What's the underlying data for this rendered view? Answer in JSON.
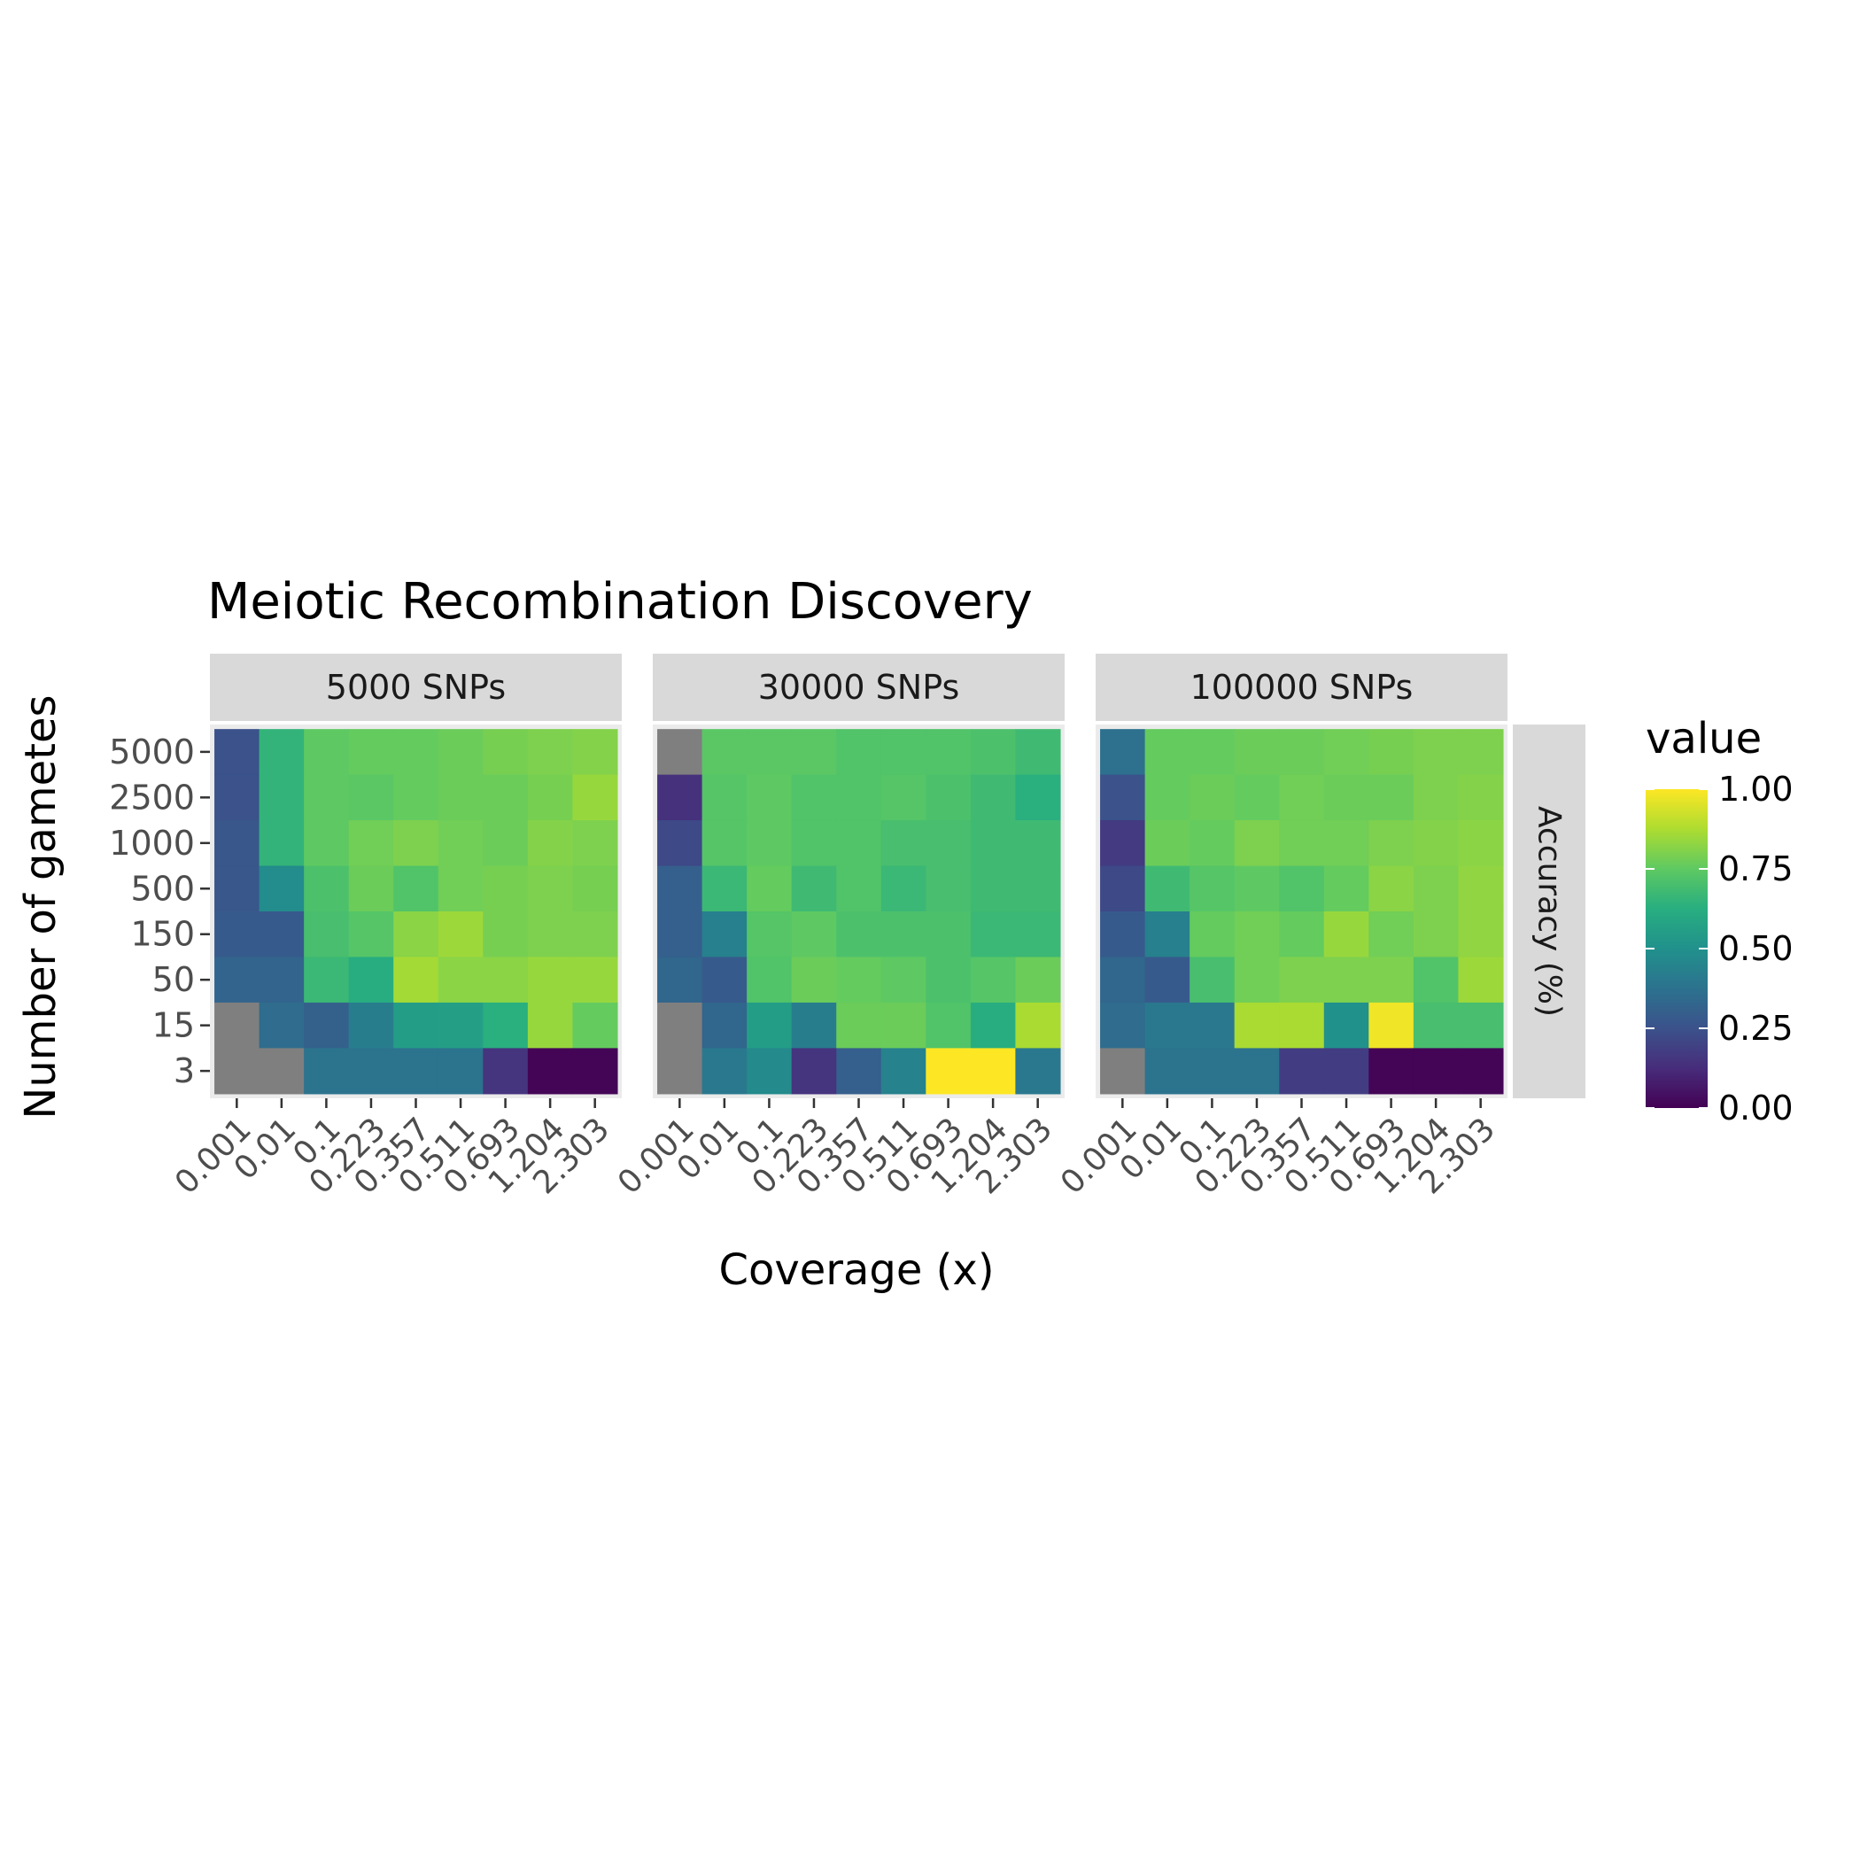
{
  "chart_data": {
    "type": "heatmap",
    "title": "Meiotic Recombination Discovery",
    "xlabel": "Coverage (x)",
    "ylabel": "Number of gametes",
    "strip_right": "Accuracy (%)",
    "x_categories": [
      "0.001",
      "0.01",
      "0.1",
      "0.223",
      "0.357",
      "0.511",
      "0.693",
      "1.204",
      "2.303"
    ],
    "y_categories": [
      "5000",
      "2500",
      "1000",
      "500",
      "150",
      "50",
      "15",
      "3"
    ],
    "legend": {
      "title": "value",
      "ticks": [
        "0.00",
        "0.25",
        "0.50",
        "0.75",
        "1.00"
      ],
      "limits": [
        0,
        1
      ],
      "palette": "viridis"
    },
    "na_color": "#7f7f7f",
    "panels": [
      {
        "label": "5000 SNPs",
        "values": [
          [
            0.25,
            0.65,
            0.75,
            0.76,
            0.76,
            0.77,
            0.79,
            0.8,
            0.81
          ],
          [
            0.25,
            0.65,
            0.75,
            0.74,
            0.76,
            0.77,
            0.77,
            0.79,
            0.84
          ],
          [
            0.27,
            0.65,
            0.75,
            0.78,
            0.8,
            0.78,
            0.77,
            0.81,
            0.8
          ],
          [
            0.27,
            0.48,
            0.71,
            0.77,
            0.72,
            0.78,
            0.79,
            0.8,
            0.79
          ],
          [
            0.28,
            0.28,
            0.7,
            0.73,
            0.82,
            0.85,
            0.79,
            0.8,
            0.8
          ],
          [
            0.32,
            0.32,
            0.67,
            0.62,
            0.86,
            0.82,
            0.82,
            0.84,
            0.84
          ],
          [
            null,
            0.35,
            0.31,
            0.42,
            0.55,
            0.56,
            0.63,
            0.84,
            0.76
          ],
          [
            null,
            null,
            0.38,
            0.38,
            0.38,
            0.38,
            0.15,
            0.01,
            0.01
          ]
        ]
      },
      {
        "label": "30000 SNPs",
        "values": [
          [
            null,
            0.74,
            0.74,
            0.74,
            0.72,
            0.72,
            0.72,
            0.71,
            0.68
          ],
          [
            0.14,
            0.73,
            0.75,
            0.72,
            0.72,
            0.73,
            0.71,
            0.68,
            0.63
          ],
          [
            0.22,
            0.73,
            0.75,
            0.72,
            0.72,
            0.7,
            0.7,
            0.68,
            0.68
          ],
          [
            0.3,
            0.67,
            0.76,
            0.68,
            0.72,
            0.67,
            0.7,
            0.68,
            0.68
          ],
          [
            0.3,
            0.43,
            0.73,
            0.75,
            0.71,
            0.71,
            0.71,
            0.67,
            0.67
          ],
          [
            0.33,
            0.28,
            0.72,
            0.77,
            0.76,
            0.75,
            0.71,
            0.73,
            0.77
          ],
          [
            null,
            0.33,
            0.55,
            0.42,
            0.77,
            0.77,
            0.72,
            0.62,
            0.87
          ],
          [
            null,
            0.4,
            0.47,
            0.15,
            0.3,
            0.44,
            1.0,
            1.0,
            0.4
          ]
        ]
      },
      {
        "label": "100000 SNPs",
        "values": [
          [
            0.37,
            0.76,
            0.76,
            0.77,
            0.77,
            0.78,
            0.79,
            0.8,
            0.8
          ],
          [
            0.25,
            0.76,
            0.77,
            0.76,
            0.78,
            0.77,
            0.77,
            0.8,
            0.81
          ],
          [
            0.17,
            0.77,
            0.76,
            0.8,
            0.78,
            0.78,
            0.8,
            0.81,
            0.82
          ],
          [
            0.22,
            0.68,
            0.73,
            0.75,
            0.72,
            0.76,
            0.82,
            0.8,
            0.83
          ],
          [
            0.28,
            0.43,
            0.76,
            0.78,
            0.76,
            0.84,
            0.78,
            0.8,
            0.83
          ],
          [
            0.33,
            0.28,
            0.7,
            0.78,
            0.8,
            0.8,
            0.8,
            0.72,
            0.85
          ],
          [
            0.35,
            0.4,
            0.4,
            0.87,
            0.87,
            0.5,
            0.98,
            0.7,
            0.7
          ],
          [
            null,
            0.38,
            0.38,
            0.38,
            0.18,
            0.18,
            0.01,
            0.01,
            0.01
          ]
        ]
      }
    ]
  }
}
